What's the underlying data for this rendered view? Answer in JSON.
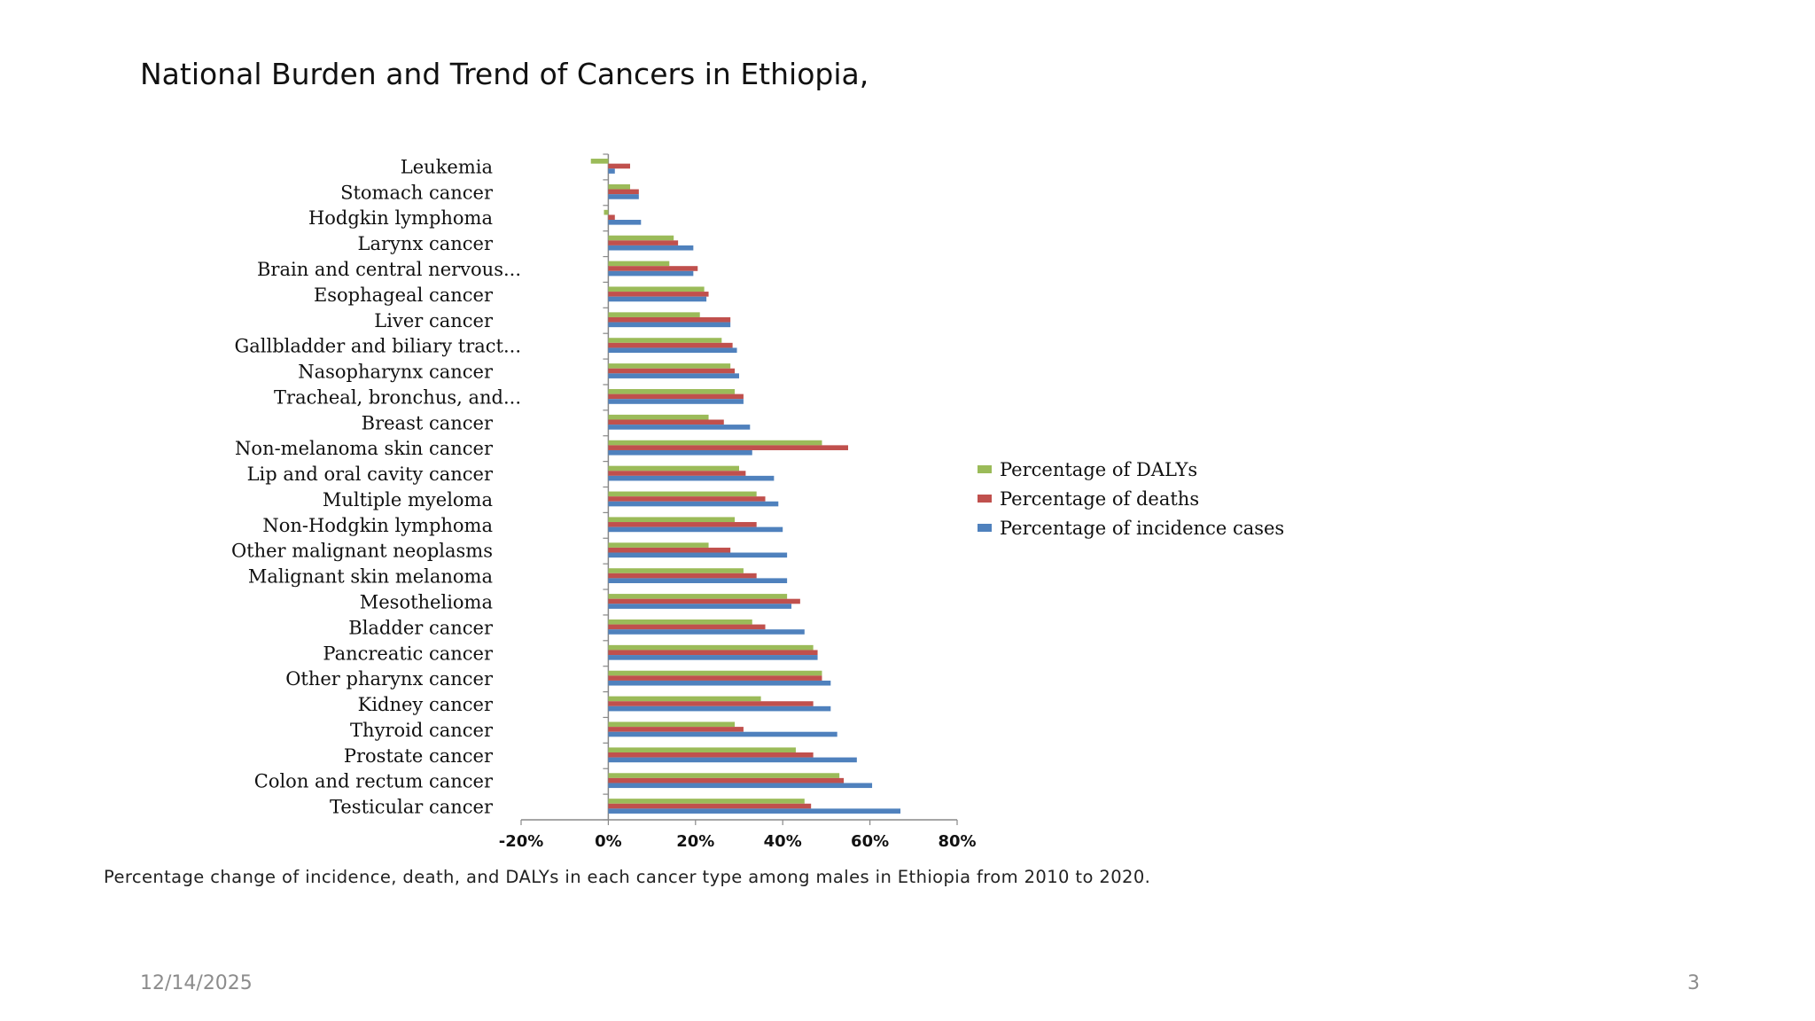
{
  "slide": {
    "title": "National Burden and Trend of Cancers in Ethiopia,",
    "caption": "Percentage change of incidence, death, and DALYs in each cancer type among males in Ethiopia from 2010 to 2020.",
    "date": "12/14/2025",
    "page_number": "3"
  },
  "chart_data": {
    "type": "bar",
    "orientation": "horizontal",
    "title": "",
    "xlabel": "",
    "ylabel": "",
    "xlim": [
      -20,
      80
    ],
    "xticks": [
      "-20%",
      "0%",
      "20%",
      "40%",
      "60%",
      "80%"
    ],
    "xtick_values": [
      -20,
      0,
      20,
      40,
      60,
      80
    ],
    "grid": false,
    "legend_position": "right",
    "categories": [
      "Leukemia",
      "Stomach cancer",
      "Hodgkin lymphoma",
      "Larynx cancer",
      "Brain and central nervous...",
      "Esophageal cancer",
      "Liver cancer",
      "Gallbladder and biliary tract...",
      "Nasopharynx cancer",
      "Tracheal, bronchus, and...",
      "Breast cancer",
      "Non-melanoma skin cancer",
      "Lip and oral cavity cancer",
      "Multiple myeloma",
      "Non-Hodgkin lymphoma",
      "Other malignant neoplasms",
      "Malignant skin melanoma",
      "Mesothelioma",
      "Bladder cancer",
      "Pancreatic cancer",
      "Other pharynx cancer",
      "Kidney cancer",
      "Thyroid cancer",
      "Prostate cancer",
      "Colon and rectum cancer",
      "Testicular cancer"
    ],
    "series": [
      {
        "name": "Percentage of DALYs",
        "color": "#9bbb59",
        "values": [
          -4,
          5,
          -1,
          15,
          14,
          22,
          21,
          26,
          28,
          29,
          23,
          49,
          30,
          34,
          29,
          23,
          31,
          41,
          33,
          47,
          49,
          35,
          29,
          43,
          53,
          45
        ]
      },
      {
        "name": "Percentage of deaths",
        "color": "#c0504d",
        "values": [
          5,
          7,
          1.5,
          16,
          20.5,
          23,
          28,
          28.5,
          29,
          31,
          26.5,
          55,
          31.5,
          36,
          34,
          28,
          34,
          44,
          36,
          48,
          49,
          47,
          31,
          47,
          54,
          46.5
        ]
      },
      {
        "name": "Percentage of incidence cases",
        "color": "#4f81bd",
        "values": [
          1.5,
          7,
          7.5,
          19.5,
          19.5,
          22.5,
          28,
          29.5,
          30,
          31,
          32.5,
          33,
          38,
          39,
          40,
          41,
          41,
          42,
          45,
          48,
          51,
          51,
          52.5,
          57,
          60.5,
          67
        ]
      }
    ]
  }
}
